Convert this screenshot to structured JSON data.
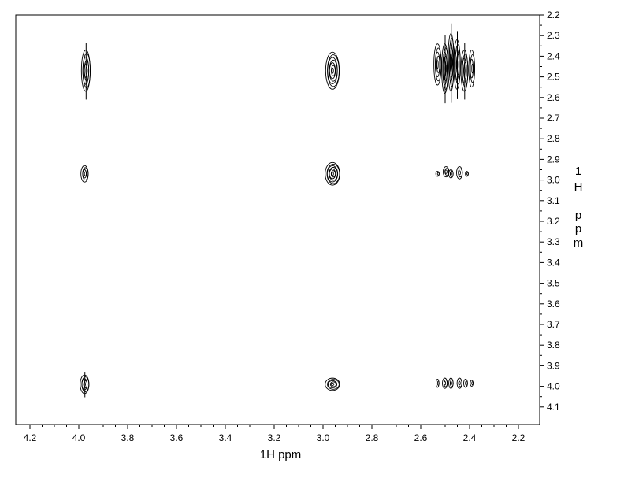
{
  "chart_data": {
    "type": "contour",
    "xlabel": "1H ppm",
    "ylabel_letters": [
      "1",
      "H",
      "",
      "p",
      "p",
      "m"
    ],
    "x_range": [
      4.2,
      2.2
    ],
    "y_range": [
      2.2,
      4.1
    ],
    "x_ticks": [
      "4.2",
      "4.0",
      "3.8",
      "3.6",
      "3.4",
      "3.2",
      "3.0",
      "2.8",
      "2.6",
      "2.4",
      "2.2"
    ],
    "y_ticks": [
      "2.2",
      "2.3",
      "2.4",
      "2.5",
      "2.6",
      "2.7",
      "2.8",
      "2.9",
      "3.0",
      "3.1",
      "3.2",
      "3.3",
      "3.4",
      "3.5",
      "3.6",
      "3.7",
      "3.8",
      "3.9",
      "4.0",
      "4.1"
    ],
    "peaks": [
      {
        "x": 3.97,
        "y": 2.47,
        "wx": 0.018,
        "wy": 0.1,
        "levels": 6,
        "tail": true
      },
      {
        "x": 2.96,
        "y": 2.47,
        "wx": 0.028,
        "wy": 0.09,
        "levels": 7
      },
      {
        "x": 2.53,
        "y": 2.44,
        "wx": 0.015,
        "wy": 0.1,
        "levels": 5
      },
      {
        "x": 2.5,
        "y": 2.46,
        "wx": 0.013,
        "wy": 0.12,
        "levels": 6,
        "tail": true
      },
      {
        "x": 2.475,
        "y": 2.43,
        "wx": 0.012,
        "wy": 0.14,
        "levels": 6,
        "tail": true
      },
      {
        "x": 2.45,
        "y": 2.44,
        "wx": 0.013,
        "wy": 0.12,
        "levels": 5,
        "tail": true
      },
      {
        "x": 2.42,
        "y": 2.47,
        "wx": 0.014,
        "wy": 0.1,
        "levels": 5,
        "tail": true
      },
      {
        "x": 2.39,
        "y": 2.46,
        "wx": 0.012,
        "wy": 0.09,
        "levels": 4
      },
      {
        "x": 3.975,
        "y": 2.97,
        "wx": 0.015,
        "wy": 0.04,
        "levels": 4
      },
      {
        "x": 2.96,
        "y": 2.97,
        "wx": 0.03,
        "wy": 0.055,
        "levels": 7
      },
      {
        "x": 2.53,
        "y": 2.97,
        "wx": 0.007,
        "wy": 0.012,
        "levels": 2
      },
      {
        "x": 2.495,
        "y": 2.96,
        "wx": 0.012,
        "wy": 0.025,
        "levels": 3
      },
      {
        "x": 2.475,
        "y": 2.97,
        "wx": 0.009,
        "wy": 0.02,
        "levels": 3
      },
      {
        "x": 2.44,
        "y": 2.965,
        "wx": 0.012,
        "wy": 0.03,
        "levels": 3
      },
      {
        "x": 2.41,
        "y": 2.97,
        "wx": 0.006,
        "wy": 0.012,
        "levels": 2
      },
      {
        "x": 3.975,
        "y": 3.99,
        "wx": 0.018,
        "wy": 0.045,
        "levels": 5,
        "tail": true
      },
      {
        "x": 2.96,
        "y": 3.99,
        "wx": 0.03,
        "wy": 0.03,
        "levels": 5
      },
      {
        "x": 2.53,
        "y": 3.985,
        "wx": 0.006,
        "wy": 0.02,
        "levels": 2
      },
      {
        "x": 2.5,
        "y": 3.985,
        "wx": 0.01,
        "wy": 0.025,
        "levels": 3
      },
      {
        "x": 2.475,
        "y": 3.985,
        "wx": 0.009,
        "wy": 0.025,
        "levels": 3
      },
      {
        "x": 2.44,
        "y": 3.985,
        "wx": 0.01,
        "wy": 0.025,
        "levels": 3
      },
      {
        "x": 2.415,
        "y": 3.985,
        "wx": 0.008,
        "wy": 0.02,
        "levels": 2
      },
      {
        "x": 2.39,
        "y": 3.985,
        "wx": 0.006,
        "wy": 0.015,
        "levels": 2
      }
    ]
  }
}
